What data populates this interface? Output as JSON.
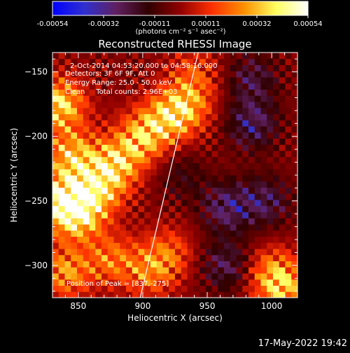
{
  "colorbar": {
    "ticks": [
      "-0.00054",
      "-0.00032",
      "-0.00011",
      "0.00011",
      "0.00032",
      "0.00054"
    ],
    "unit_label": "(photons cm⁻² s⁻¹ asec⁻²)",
    "range": [
      -0.00054,
      0.00054
    ],
    "stops": [
      "#0000ff",
      "#3030d0",
      "#602060",
      "#300000",
      "#900000",
      "#ff3000",
      "#ff9000",
      "#ffff60",
      "#ffffff"
    ]
  },
  "plot": {
    "title": "Reconstructed RHESSI Image",
    "xlabel": "Heliocentric X (arcsec)",
    "ylabel": "Heliocentric Y (arcsec)",
    "info_lines": [
      "2-Oct-2014 04:53:20.000 to 04:58:16.000",
      "Detectors: 3F 6F 9F, Att 0",
      "Energy Range: 25.0 - 50.0 keV",
      "Clean     Total counts: 2.96E+03"
    ],
    "peak_label": "Position of Peak = [837,-275]"
  },
  "timestamp": "17-May-2022 19:42",
  "chart_data": {
    "type": "heatmap",
    "title": "Reconstructed RHESSI Image",
    "xlabel": "Heliocentric X (arcsec)",
    "ylabel": "Heliocentric Y (arcsec)",
    "xlim": [
      830,
      1020
    ],
    "ylim": [
      -325,
      -135
    ],
    "x_ticks": [
      850,
      900,
      950,
      1000
    ],
    "y_ticks": [
      -150,
      -200,
      -250,
      -300
    ],
    "x_tick_labels": [
      "850",
      "900",
      "950",
      "1000"
    ],
    "y_tick_labels": [
      "−150",
      "−200",
      "−250",
      "−300"
    ],
    "value_range": [
      -0.00054,
      0.00054
    ],
    "peak_position": [
      837,
      -275
    ],
    "limb_line": [
      [
        898,
        -325
      ],
      [
        943,
        -135
      ]
    ],
    "features": [
      {
        "x": 835,
        "y": -175,
        "value": 0.00054
      },
      {
        "x": 845,
        "y": -215,
        "value": 0.00045
      },
      {
        "x": 835,
        "y": -250,
        "value": 0.00054
      },
      {
        "x": 850,
        "y": -260,
        "value": 0.0005
      },
      {
        "x": 865,
        "y": -240,
        "value": 0.00045
      },
      {
        "x": 880,
        "y": -220,
        "value": 0.00042
      },
      {
        "x": 900,
        "y": -200,
        "value": 0.0004
      },
      {
        "x": 920,
        "y": -185,
        "value": 0.00038
      },
      {
        "x": 935,
        "y": -175,
        "value": 0.00032
      },
      {
        "x": 840,
        "y": -305,
        "value": 0.00038
      },
      {
        "x": 875,
        "y": -295,
        "value": 0.0003
      },
      {
        "x": 905,
        "y": -305,
        "value": 0.00028
      },
      {
        "x": 920,
        "y": -290,
        "value": 0.00025
      },
      {
        "x": 1000,
        "y": -305,
        "value": 0.00032
      },
      {
        "x": 1010,
        "y": -320,
        "value": 0.00035
      },
      {
        "x": 985,
        "y": -190,
        "value": -0.00032
      },
      {
        "x": 965,
        "y": -255,
        "value": -0.00032
      },
      {
        "x": 995,
        "y": -250,
        "value": -0.00028
      },
      {
        "x": 965,
        "y": -300,
        "value": -0.00028
      },
      {
        "x": 985,
        "y": -155,
        "value": -0.00025
      },
      {
        "x": 930,
        "y": -230,
        "value": -0.00015
      },
      {
        "x": 940,
        "y": -150,
        "value": 0.0002
      }
    ]
  }
}
